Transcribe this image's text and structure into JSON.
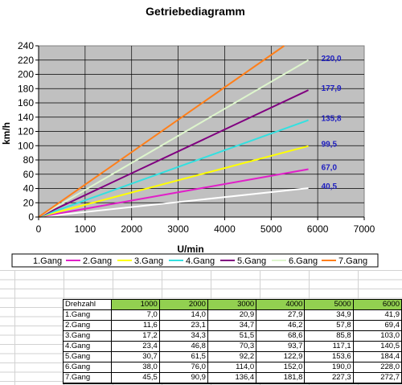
{
  "chart_data": {
    "type": "line",
    "title": "Getriebediagramm",
    "xlabel": "U/min",
    "ylabel": "km/h",
    "xlim": [
      0,
      7000
    ],
    "ylim": [
      0,
      240
    ],
    "xticks": [
      0,
      1000,
      2000,
      3000,
      4000,
      5000,
      6000,
      7000
    ],
    "yticks": [
      0,
      20,
      40,
      60,
      80,
      100,
      120,
      140,
      160,
      180,
      200,
      220,
      240
    ],
    "grid": true,
    "legend_position": "bottom",
    "series": [
      {
        "name": "1.Gang",
        "color": "#ffffff",
        "x": [
          0,
          5800
        ],
        "y": [
          0,
          40.5
        ],
        "end_label": "40,5"
      },
      {
        "name": "2.Gang",
        "color": "#e020c8",
        "x": [
          0,
          5800
        ],
        "y": [
          0,
          67.0
        ],
        "end_label": "67,0"
      },
      {
        "name": "3.Gang",
        "color": "#ffff00",
        "x": [
          0,
          5800
        ],
        "y": [
          0,
          99.5
        ],
        "end_label": "99,5"
      },
      {
        "name": "4.Gang",
        "color": "#33e0e0",
        "x": [
          0,
          5800
        ],
        "y": [
          0,
          135.8
        ],
        "end_label": "135,8"
      },
      {
        "name": "5.Gang",
        "color": "#800080",
        "x": [
          0,
          5800
        ],
        "y": [
          0,
          177.9
        ],
        "end_label": "177,9"
      },
      {
        "name": "6.Gang",
        "color": "#ddf5cc",
        "x": [
          0,
          5800
        ],
        "y": [
          0,
          220.0
        ],
        "end_label": "220,0"
      },
      {
        "name": "7.Gang",
        "color": "#ff7f1a",
        "x": [
          0,
          5280
        ],
        "y": [
          0,
          240
        ],
        "end_label": ""
      }
    ]
  },
  "table": {
    "corner": "Drehzahl",
    "headers": [
      "1000",
      "2000",
      "3000",
      "4000",
      "5000",
      "6000"
    ],
    "rows": [
      {
        "label": "1.Gang",
        "values": [
          "7,0",
          "14,0",
          "20,9",
          "27,9",
          "34,9",
          "41,9"
        ]
      },
      {
        "label": "2.Gang",
        "values": [
          "11,6",
          "23,1",
          "34,7",
          "46,2",
          "57,8",
          "69,4"
        ]
      },
      {
        "label": "3.Gang",
        "values": [
          "17,2",
          "34,3",
          "51,5",
          "68,6",
          "85,8",
          "103,0"
        ]
      },
      {
        "label": "4.Gang",
        "values": [
          "23,4",
          "46,8",
          "70,3",
          "93,7",
          "117,1",
          "140,5"
        ]
      },
      {
        "label": "5.Gang",
        "values": [
          "30,7",
          "61,5",
          "92,2",
          "122,9",
          "153,6",
          "184,4"
        ]
      },
      {
        "label": "6.Gang",
        "values": [
          "38,0",
          "76,0",
          "114,0",
          "152,0",
          "190,0",
          "228,0"
        ]
      },
      {
        "label": "7.Gang",
        "values": [
          "45,5",
          "90,9",
          "136,4",
          "181,8",
          "227,3",
          "272,7"
        ]
      }
    ]
  }
}
